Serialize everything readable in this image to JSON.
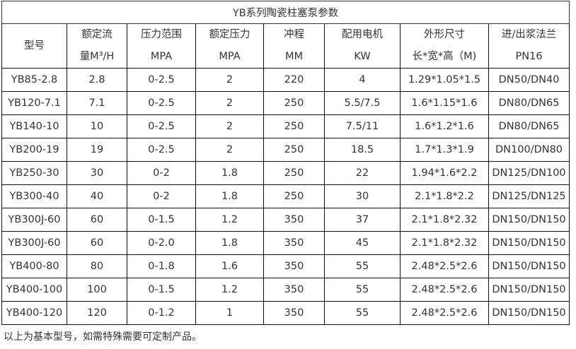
{
  "title": "YB系列陶瓷柱塞泵参数",
  "headers": [
    [
      "型号",
      ""
    ],
    [
      "额定流",
      "量M³/H"
    ],
    [
      "压力范围",
      "MPA"
    ],
    [
      "额定压力",
      "MPA"
    ],
    [
      "冲程",
      "MM"
    ],
    [
      "配用电机",
      "KW"
    ],
    [
      "外形尺寸",
      "长*宽*高（M)"
    ],
    [
      "进/出浆法兰",
      "PN16"
    ]
  ],
  "rows": [
    [
      "YB85-2.8",
      "2.8",
      "0-2.5",
      "2",
      "220",
      "4",
      "1.29*1.05*1.5",
      "DN50/DN40"
    ],
    [
      "YB120-7.1",
      "7.1",
      "0-2.5",
      "2",
      "250",
      "5.5/7.5",
      "1.6*1.15*1.6",
      "DN80/DN65"
    ],
    [
      "YB140-10",
      "10",
      "0-2.5",
      "2",
      "250",
      "7.5/11",
      "1.6*1.2*1.6",
      "DN80/DN65"
    ],
    [
      "YB200-19",
      "19",
      "0-2.5",
      "2",
      "250",
      "18.5",
      "1.7*1.3*1.9",
      "DN100/DN80"
    ],
    [
      "YB250-30",
      "30",
      "0-2",
      "1.8",
      "250",
      "22",
      "1.94*1.6*2.2",
      "DN125/DN100"
    ],
    [
      "YB300-40",
      "40",
      "0-2",
      "1.8",
      "250",
      "30",
      "2.1*1.8*2.2",
      "DN125/DN125"
    ],
    [
      "YB300J-60",
      "60",
      "0-1.5",
      "1.2",
      "350",
      "37",
      "2.1*1.8*2.32",
      "DN150/DN150"
    ],
    [
      "YB300J-60",
      "60",
      "0-2.0",
      "1.8",
      "350",
      "45",
      "2.1*1.8*2.32",
      "DN150/DN150"
    ],
    [
      "YB400-80",
      "80",
      "0-1.8",
      "1.6",
      "350",
      "55",
      "2.48*2.5*2.6",
      "DN150/DN150"
    ],
    [
      "YB400-100",
      "100",
      "0-1.5",
      "1.2",
      "350",
      "55",
      "2.48*2.5*2.6",
      "DN150/DN150"
    ],
    [
      "YB400-120",
      "120",
      "0-1.2",
      "1",
      "350",
      "55",
      "2.48*2.5*2.6",
      "DN150/DN150"
    ]
  ],
  "note": "以上为基本型号，如需特殊需要可定制产品。"
}
